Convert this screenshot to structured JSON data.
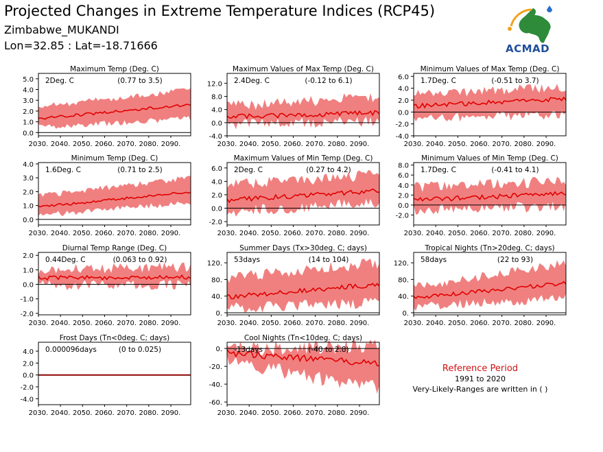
{
  "header": {
    "title": "Projected Changes in Extreme Temperature Indices (RCP45)",
    "location": "Zimbabwe_MUKANDI",
    "coords": "Lon=32.85 : Lat=-18.71666"
  },
  "logo": {
    "text": "ACMAD"
  },
  "note": {
    "title": "Reference Period",
    "period": "1991 to 2020",
    "ranges": "Very-Likely-Ranges are written in ( )"
  },
  "colors": {
    "band": "#f08080",
    "line": "#e00000",
    "frost_line": "#8b0000"
  },
  "chart_data": [
    {
      "type": "area",
      "title": "Maximum Temp (Deg. C)",
      "summary": "2Deg. C",
      "range": "(0.77 to 3.5)",
      "x_range": [
        2030,
        2099
      ],
      "xticks": [
        "2030.",
        "2040.",
        "2050.",
        "2060.",
        "2070.",
        "2080.",
        "2090."
      ],
      "ylim": [
        -0.3,
        5.5
      ],
      "yticks": [
        0.0,
        1.0,
        2.0,
        3.0,
        4.0,
        5.0
      ],
      "yticklabels": [
        "0.0",
        "1.0",
        "2.0",
        "3.0",
        "4.0",
        "5.0"
      ],
      "median_start": 1.3,
      "median_end": 2.6,
      "low_start": 0.5,
      "low_end": 1.3,
      "high_start": 2.4,
      "high_end": 4.0,
      "noise": 0.2
    },
    {
      "type": "area",
      "title": "Maximum Values of Max Temp (Deg. C)",
      "summary": "2.4Deg. C",
      "range": "(-0.12 to 6.1)",
      "x_range": [
        2030,
        2099
      ],
      "xticks": [
        "2030.",
        "2040.",
        "2050.",
        "2060.",
        "2070.",
        "2080.",
        "2090."
      ],
      "ylim": [
        -4.0,
        15.0
      ],
      "yticks": [
        -4.0,
        0.0,
        4.0,
        8.0,
        12.0
      ],
      "yticklabels": [
        "-4.0",
        "0.0",
        "4.0",
        "8.0",
        "12.0"
      ],
      "median_start": 1.8,
      "median_end": 3.0,
      "low_start": -0.5,
      "low_end": 0.5,
      "high_start": 5.0,
      "high_end": 8.0,
      "noise": 1.2
    },
    {
      "type": "area",
      "title": "Minimum Values of Max Temp (Deg. C)",
      "summary": "1.7Deg. C",
      "range": "(-0.51 to 3.7)",
      "x_range": [
        2030,
        2099
      ],
      "xticks": [
        "2030.",
        "2040.",
        "2050.",
        "2060.",
        "2070.",
        "2080.",
        "2090."
      ],
      "ylim": [
        -4.0,
        6.5
      ],
      "yticks": [
        -4.0,
        -2.0,
        0.0,
        2.0,
        4.0,
        6.0
      ],
      "yticklabels": [
        "-4.0",
        "-2.0",
        "0.0",
        "2.0",
        "4.0",
        "6.0"
      ],
      "median_start": 1.0,
      "median_end": 2.2,
      "low_start": -1.0,
      "low_end": -0.5,
      "high_start": 3.0,
      "high_end": 4.2,
      "noise": 0.6
    },
    {
      "type": "area",
      "title": "Minimum Temp (Deg. C)",
      "summary": "1.6Deg. C",
      "range": "(0.71 to 2.5)",
      "x_range": [
        2030,
        2099
      ],
      "xticks": [
        "2030.",
        "2040.",
        "2050.",
        "2060.",
        "2070.",
        "2080.",
        "2090."
      ],
      "ylim": [
        -0.4,
        4.1
      ],
      "yticks": [
        0.0,
        1.0,
        2.0,
        3.0,
        4.0
      ],
      "yticklabels": [
        "0.0",
        "1.0",
        "2.0",
        "3.0",
        "4.0"
      ],
      "median_start": 0.9,
      "median_end": 2.0,
      "low_start": 0.3,
      "low_end": 1.2,
      "high_start": 1.7,
      "high_end": 3.0,
      "noise": 0.15
    },
    {
      "type": "area",
      "title": "Maximum Values of Min Temp (Deg. C)",
      "summary": "2Deg. C",
      "range": "(0.27 to 4.2)",
      "x_range": [
        2030,
        2099
      ],
      "xticks": [
        "2030.",
        "2040.",
        "2050.",
        "2060.",
        "2070.",
        "2080.",
        "2090."
      ],
      "ylim": [
        -2.5,
        6.8
      ],
      "yticks": [
        -2.0,
        0.0,
        2.0,
        4.0,
        6.0
      ],
      "yticklabels": [
        "-2.0",
        "0.0",
        "2.0",
        "4.0",
        "6.0"
      ],
      "median_start": 1.2,
      "median_end": 2.6,
      "low_start": -0.5,
      "low_end": 0.8,
      "high_start": 3.5,
      "high_end": 5.0,
      "noise": 0.6
    },
    {
      "type": "area",
      "title": "Minimum Values of Min Temp (Deg. C)",
      "summary": "1.7Deg. C",
      "range": "(-0.41 to 4.1)",
      "x_range": [
        2030,
        2099
      ],
      "xticks": [
        "2030.",
        "2040.",
        "2050.",
        "2060.",
        "2070.",
        "2080.",
        "2090."
      ],
      "ylim": [
        -4.0,
        8.5
      ],
      "yticks": [
        -2.0,
        0.0,
        2.0,
        4.0,
        6.0,
        8.0
      ],
      "yticklabels": [
        "-2.0",
        "0.0",
        "2.0",
        "4.0",
        "6.0",
        "8.0"
      ],
      "median_start": 1.0,
      "median_end": 2.3,
      "low_start": -1.0,
      "low_end": -0.2,
      "high_start": 3.5,
      "high_end": 4.8,
      "noise": 0.8
    },
    {
      "type": "area",
      "title": "Diurnal Temp Range (Deg. C)",
      "summary": "0.44Deg. C",
      "range": "(0.063 to 0.92)",
      "x_range": [
        2030,
        2099
      ],
      "xticks": [
        "2030.",
        "2040.",
        "2050.",
        "2060.",
        "2070.",
        "2080.",
        "2090."
      ],
      "ylim": [
        -2.1,
        2.2
      ],
      "yticks": [
        -2.0,
        -1.0,
        0.0,
        1.0,
        2.0
      ],
      "yticklabels": [
        "-2.0",
        "-1.0",
        "0.0",
        "1.0",
        "2.0"
      ],
      "median_start": 0.45,
      "median_end": 0.5,
      "low_start": -0.1,
      "low_end": 0.0,
      "high_start": 1.0,
      "high_end": 1.2,
      "noise": 0.25
    },
    {
      "type": "area",
      "title": "Summer Days (Tx>30deg. C; days)",
      "summary": "53days",
      "range": "(14 to 104)",
      "x_range": [
        2030,
        2099
      ],
      "xticks": [
        "2030.",
        "2040.",
        "2050.",
        "2060.",
        "2070.",
        "2080.",
        "2090."
      ],
      "ylim": [
        -5,
        145
      ],
      "yticks": [
        0,
        40,
        80,
        120
      ],
      "yticklabels": [
        "0.",
        "40.",
        "80.",
        "120."
      ],
      "median_start": 38,
      "median_end": 68,
      "low_start": 10,
      "low_end": 25,
      "high_start": 85,
      "high_end": 120,
      "noise": 10
    },
    {
      "type": "area",
      "title": "Tropical Nights (Tn>20deg. C; days)",
      "summary": "58days",
      "range": "(22 to 93)",
      "x_range": [
        2030,
        2099
      ],
      "xticks": [
        "2030.",
        "2040.",
        "2050.",
        "2060.",
        "2070.",
        "2080.",
        "2090."
      ],
      "ylim": [
        -5,
        145
      ],
      "yticks": [
        0,
        40,
        80,
        120
      ],
      "yticklabels": [
        "0.",
        "40.",
        "80.",
        "120."
      ],
      "median_start": 35,
      "median_end": 72,
      "low_start": 15,
      "low_end": 35,
      "high_start": 60,
      "high_end": 120,
      "noise": 8
    },
    {
      "type": "area",
      "title": "Frost Days (Tn<0deg. C; days)",
      "summary": "0.000096days",
      "range": "(0 to 0.025)",
      "x_range": [
        2030,
        2099
      ],
      "xticks": [
        "2030.",
        "2040.",
        "2050.",
        "2060.",
        "2070.",
        "2080.",
        "2090."
      ],
      "ylim": [
        -5.0,
        5.5
      ],
      "yticks": [
        -4.0,
        -2.0,
        0.0,
        2.0,
        4.0
      ],
      "yticklabels": [
        "-4.0",
        "-2.0",
        "0.0",
        "2.0",
        "4.0"
      ],
      "median_start": 0,
      "median_end": 0,
      "low_start": 0,
      "low_end": 0,
      "high_start": 0,
      "high_end": 0,
      "noise": 0
    },
    {
      "type": "area",
      "title": "Cool Nights (Tn<10deg. C; days)",
      "summary": "-13days",
      "range": "(-40 to 2.8)",
      "x_range": [
        2030,
        2099
      ],
      "xticks": [
        "2030.",
        "2040.",
        "2050.",
        "2060.",
        "2070.",
        "2080.",
        "2090."
      ],
      "ylim": [
        -63,
        7
      ],
      "yticks": [
        -60,
        -40,
        -20,
        0
      ],
      "yticklabels": [
        "-60.",
        "-40.",
        "-20.",
        "0."
      ],
      "median_start": -5,
      "median_end": -17,
      "low_start": -15,
      "low_end": -45,
      "high_start": 0,
      "high_end": 2,
      "noise": 6
    }
  ]
}
